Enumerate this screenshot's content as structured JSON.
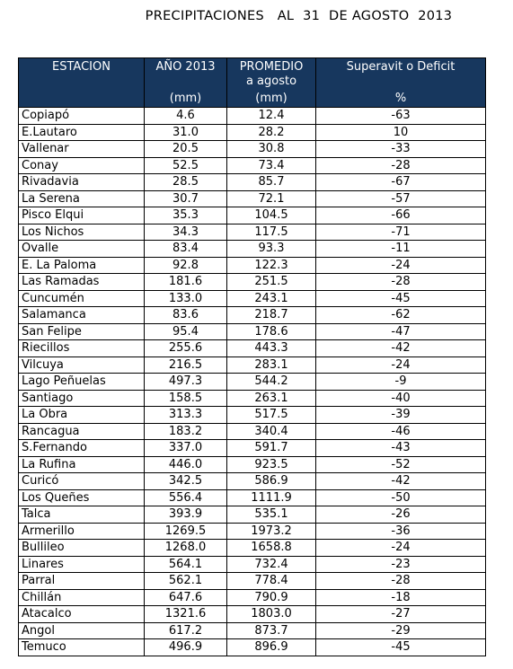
{
  "title": "PRECIPITACIONES   AL  31  DE AGOSTO  2013",
  "header": {
    "estacion": "ESTACION",
    "anio": "AÑO 2013",
    "anio_unit": "(mm)",
    "promedio": "PROMEDIO",
    "promedio_sub": "a agosto",
    "promedio_unit": "(mm)",
    "superavit": "Superavit  o Deficit",
    "superavit_unit": "%"
  },
  "rows": [
    {
      "estacion": "Copiapó",
      "anio": "4.6",
      "promedio": "12.4",
      "pct": "-63"
    },
    {
      "estacion": "E.Lautaro",
      "anio": "31.0",
      "promedio": "28.2",
      "pct": "10"
    },
    {
      "estacion": "Vallenar",
      "anio": "20.5",
      "promedio": "30.8",
      "pct": "-33"
    },
    {
      "estacion": "Conay",
      "anio": "52.5",
      "promedio": "73.4",
      "pct": "-28"
    },
    {
      "estacion": "Rivadavia",
      "anio": "28.5",
      "promedio": "85.7",
      "pct": "-67"
    },
    {
      "estacion": "La Serena",
      "anio": "30.7",
      "promedio": "72.1",
      "pct": "-57"
    },
    {
      "estacion": "Pisco Elqui",
      "anio": "35.3",
      "promedio": "104.5",
      "pct": "-66"
    },
    {
      "estacion": "Los Nichos",
      "anio": "34.3",
      "promedio": "117.5",
      "pct": "-71"
    },
    {
      "estacion": "Ovalle",
      "anio": "83.4",
      "promedio": "93.3",
      "pct": "-11"
    },
    {
      "estacion": "E. La Paloma",
      "anio": "92.8",
      "promedio": "122.3",
      "pct": "-24"
    },
    {
      "estacion": "Las Ramadas",
      "anio": "181.6",
      "promedio": "251.5",
      "pct": "-28"
    },
    {
      "estacion": "Cuncumén",
      "anio": "133.0",
      "promedio": "243.1",
      "pct": "-45"
    },
    {
      "estacion": "Salamanca",
      "anio": "83.6",
      "promedio": "218.7",
      "pct": "-62"
    },
    {
      "estacion": "San Felipe",
      "anio": "95.4",
      "promedio": "178.6",
      "pct": "-47"
    },
    {
      "estacion": "Riecillos",
      "anio": "255.6",
      "promedio": "443.3",
      "pct": "-42"
    },
    {
      "estacion": "Vilcuya",
      "anio": "216.5",
      "promedio": "283.1",
      "pct": "-24"
    },
    {
      "estacion": "Lago Peñuelas",
      "anio": "497.3",
      "promedio": "544.2",
      "pct": "-9"
    },
    {
      "estacion": "Santiago",
      "anio": "158.5",
      "promedio": "263.1",
      "pct": "-40"
    },
    {
      "estacion": "La Obra",
      "anio": "313.3",
      "promedio": "517.5",
      "pct": "-39"
    },
    {
      "estacion": "Rancagua",
      "anio": "183.2",
      "promedio": "340.4",
      "pct": "-46"
    },
    {
      "estacion": "S.Fernando",
      "anio": "337.0",
      "promedio": "591.7",
      "pct": "-43"
    },
    {
      "estacion": "La Rufina",
      "anio": "446.0",
      "promedio": "923.5",
      "pct": "-52"
    },
    {
      "estacion": "Curicó",
      "anio": "342.5",
      "promedio": "586.9",
      "pct": "-42"
    },
    {
      "estacion": "Los Queñes",
      "anio": "556.4",
      "promedio": "1111.9",
      "pct": "-50"
    },
    {
      "estacion": "Talca",
      "anio": "393.9",
      "promedio": "535.1",
      "pct": "-26"
    },
    {
      "estacion": "Armerillo",
      "anio": "1269.5",
      "promedio": "1973.2",
      "pct": "-36"
    },
    {
      "estacion": "Bullileo",
      "anio": "1268.0",
      "promedio": "1658.8",
      "pct": "-24"
    },
    {
      "estacion": "Linares",
      "anio": "564.1",
      "promedio": "732.4",
      "pct": "-23"
    },
    {
      "estacion": "Parral",
      "anio": "562.1",
      "promedio": "778.4",
      "pct": "-28"
    },
    {
      "estacion": "Chillán",
      "anio": "647.6",
      "promedio": "790.9",
      "pct": "-18"
    },
    {
      "estacion": "Atacalco",
      "anio": "1321.6",
      "promedio": "1803.0",
      "pct": "-27"
    },
    {
      "estacion": "Angol",
      "anio": "617.2",
      "promedio": "873.7",
      "pct": "-29"
    },
    {
      "estacion": "Temuco",
      "anio": "496.9",
      "promedio": "896.9",
      "pct": "-45"
    }
  ],
  "colors": {
    "header_bg": "#17375e",
    "header_text": "#ffffff"
  }
}
